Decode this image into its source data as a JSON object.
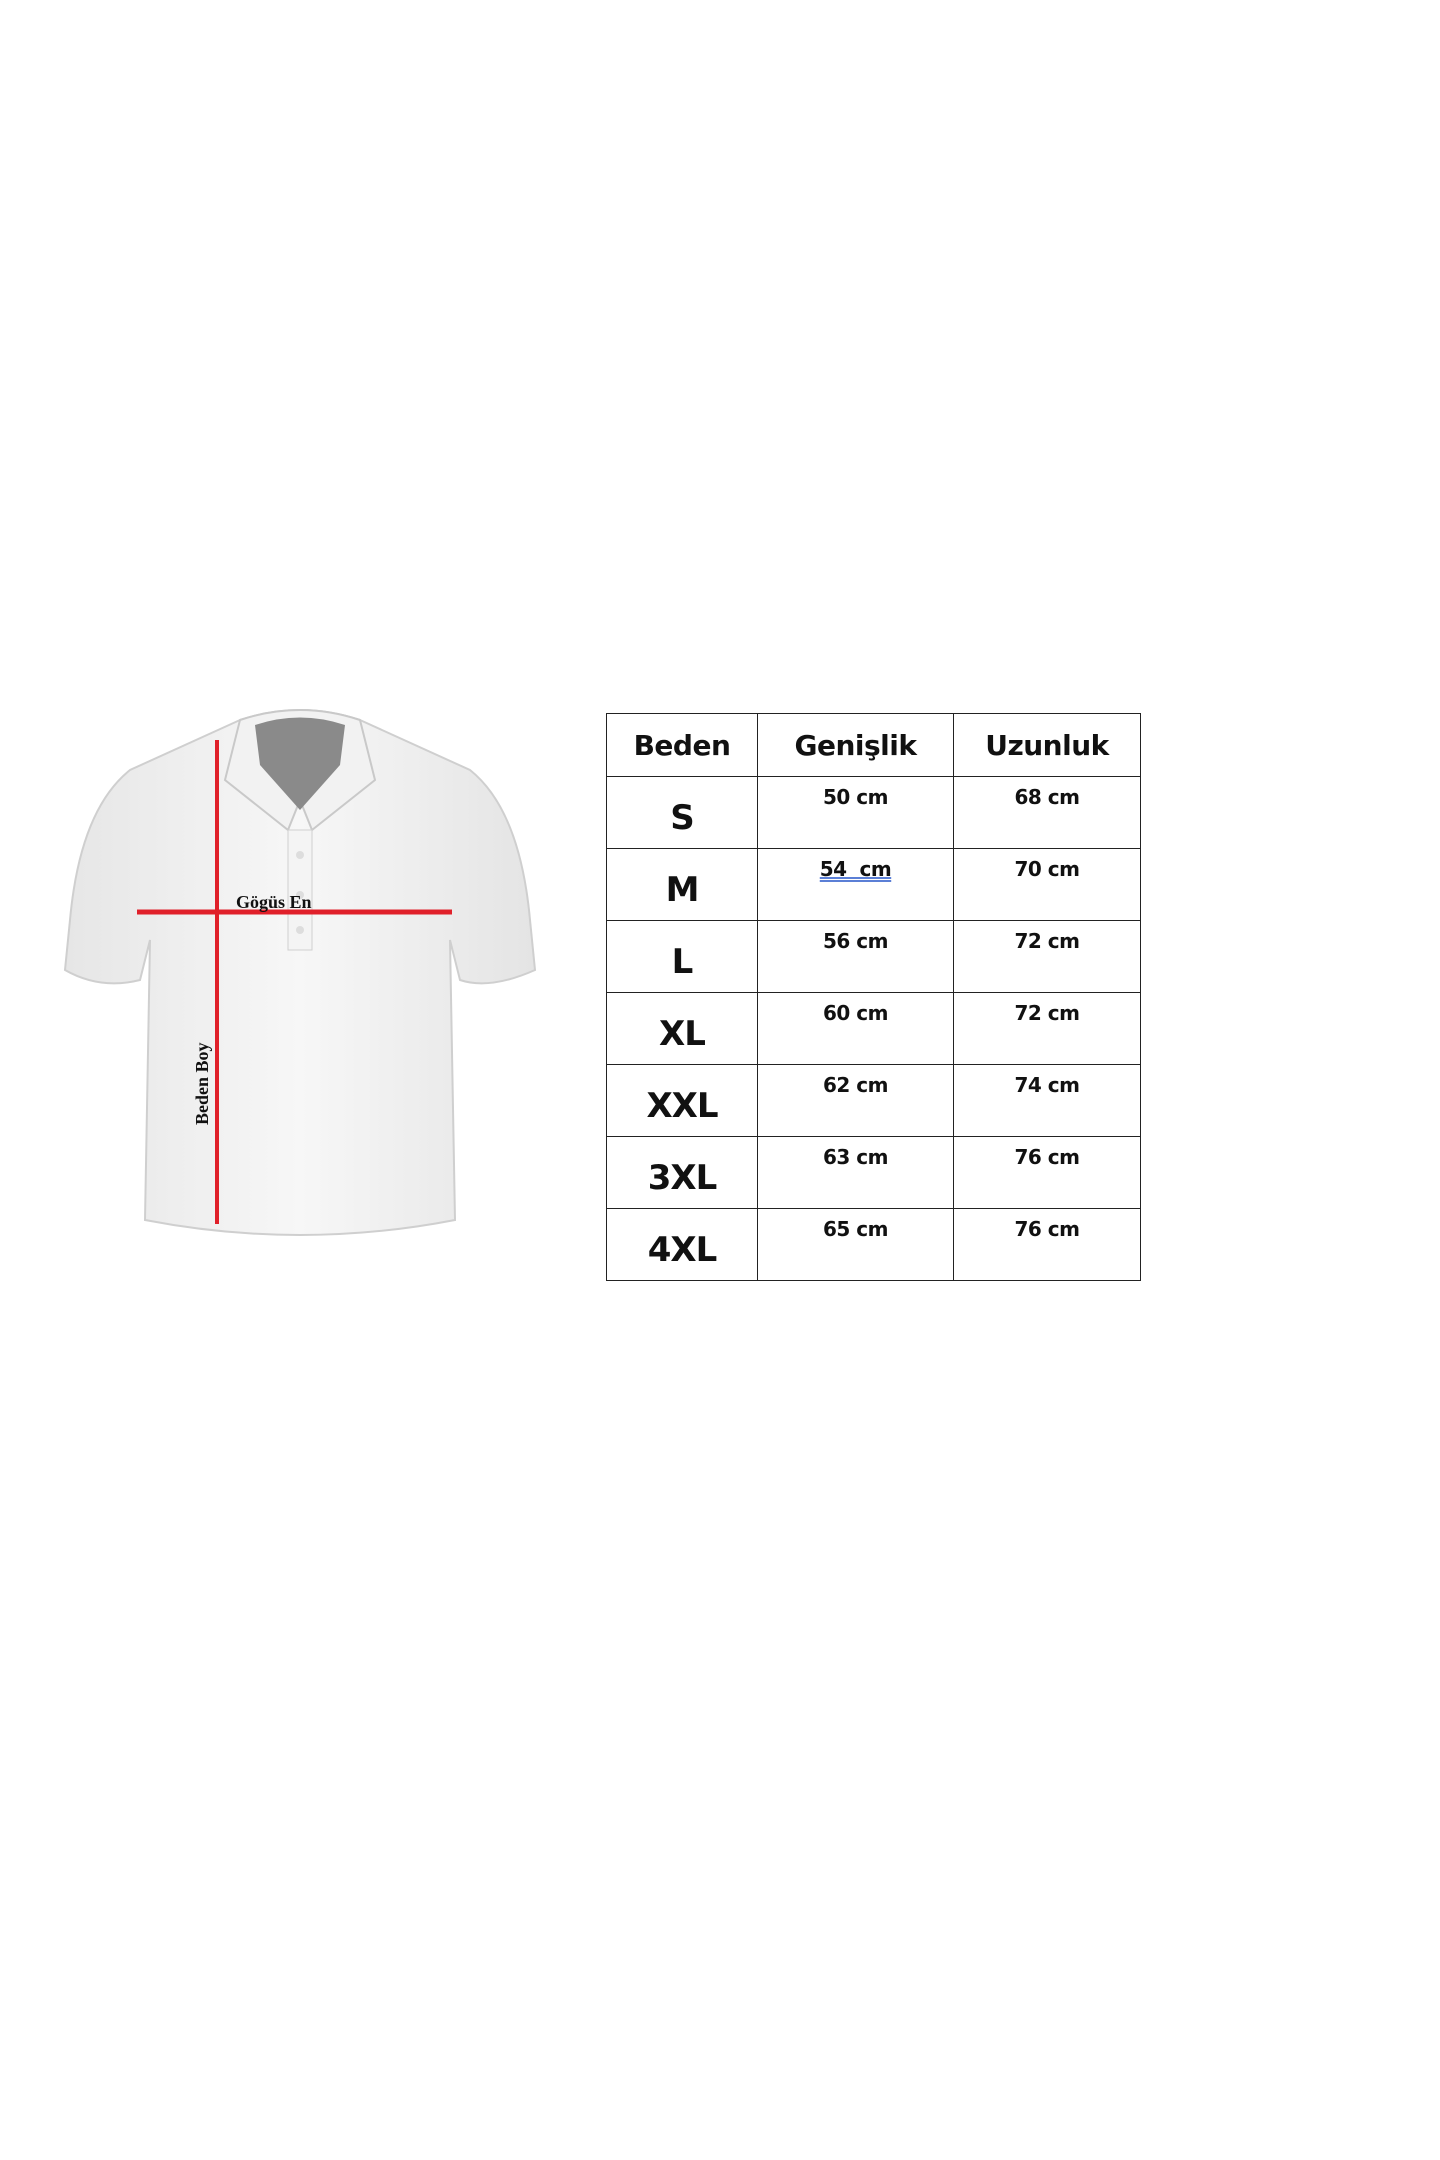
{
  "diagram": {
    "chest_label": "Gögüs En",
    "length_label": "Beden Boy",
    "measure_line_color": "#e0202a"
  },
  "table": {
    "headers": [
      "Beden",
      "Genişlik",
      "Uzunluk"
    ],
    "rows": [
      {
        "size": "S",
        "width": "50 cm",
        "length": "68 cm"
      },
      {
        "size": "M",
        "width": "54  cm",
        "length": "70 cm"
      },
      {
        "size": "L",
        "width": "56 cm",
        "length": "72 cm"
      },
      {
        "size": "XL",
        "width": "60 cm",
        "length": "72 cm"
      },
      {
        "size": "XXL",
        "width": "62 cm",
        "length": "74 cm"
      },
      {
        "size": "3XL",
        "width": "63 cm",
        "length": "76 cm"
      },
      {
        "size": "4XL",
        "width": "65 cm",
        "length": "76 cm"
      }
    ]
  }
}
